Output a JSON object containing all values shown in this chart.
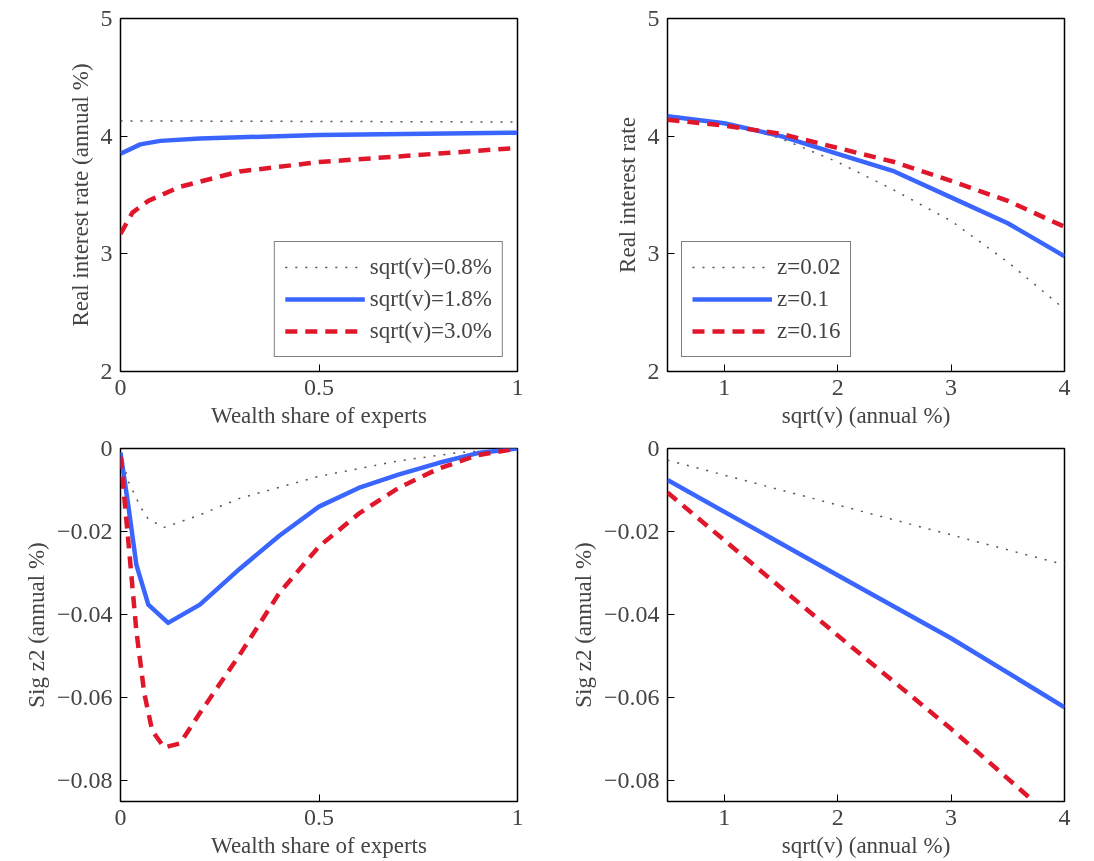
{
  "chart_data": [
    {
      "type": "line",
      "xlabel": "Wealth share of experts",
      "ylabel": "Real interest rate (annual %)",
      "xlim": [
        0,
        1
      ],
      "ylim": [
        2,
        5
      ],
      "xticks": [
        0,
        0.5,
        1
      ],
      "yticks": [
        2,
        3,
        4,
        5
      ],
      "grid": false,
      "legend": "bottom right",
      "series": [
        {
          "name": "sqrt(v)=0.8%",
          "color": "#555555",
          "line_style": "dotted",
          "x": [
            0,
            1
          ],
          "values": [
            4.13,
            4.12
          ]
        },
        {
          "name": "sqrt(v)=1.8%",
          "color": "#3a66ff",
          "line_style": "solid",
          "x": [
            0,
            0.05,
            0.1,
            0.2,
            0.5,
            1
          ],
          "values": [
            3.85,
            3.93,
            3.96,
            3.98,
            4.01,
            4.03
          ]
        },
        {
          "name": "sqrt(v)=3.0%",
          "color": "#e0162b",
          "line_style": "dashed",
          "x": [
            0,
            0.03,
            0.07,
            0.15,
            0.3,
            0.5,
            0.75,
            1
          ],
          "values": [
            3.17,
            3.35,
            3.45,
            3.57,
            3.7,
            3.78,
            3.84,
            3.9
          ]
        }
      ]
    },
    {
      "type": "line",
      "xlabel": "sqrt(v) (annual %)",
      "ylabel": "Real interest rate",
      "xlim": [
        0.5,
        4
      ],
      "ylim": [
        2,
        5
      ],
      "xticks": [
        1,
        2,
        3,
        4
      ],
      "yticks": [
        2,
        3,
        4,
        5
      ],
      "grid": false,
      "legend": "bottom left",
      "series": [
        {
          "name": "z=0.02",
          "color": "#555555",
          "line_style": "dotted",
          "x": [
            0.5,
            1,
            1.5,
            2,
            2.5,
            3,
            3.5,
            4
          ],
          "values": [
            4.18,
            4.12,
            3.98,
            3.78,
            3.54,
            3.28,
            2.93,
            2.53
          ]
        },
        {
          "name": "z=0.1",
          "color": "#3a66ff",
          "line_style": "solid",
          "x": [
            0.5,
            1,
            1.5,
            2,
            2.5,
            3,
            3.5,
            4
          ],
          "values": [
            4.17,
            4.11,
            4.0,
            3.85,
            3.7,
            3.48,
            3.26,
            2.98
          ]
        },
        {
          "name": "z=0.16",
          "color": "#e0162b",
          "line_style": "dashed",
          "x": [
            0.5,
            1,
            1.5,
            2,
            2.5,
            3,
            3.5,
            4
          ],
          "values": [
            4.14,
            4.09,
            4.02,
            3.9,
            3.78,
            3.62,
            3.45,
            3.23
          ]
        }
      ]
    },
    {
      "type": "line",
      "xlabel": "Wealth share of experts",
      "ylabel": "Sig z2 (annual %)",
      "xlim": [
        0,
        1
      ],
      "ylim": [
        -0.085,
        0
      ],
      "xticks": [
        0,
        0.5,
        1
      ],
      "yticks": [
        {
          "value": -0.08,
          "label": "−0.08"
        },
        {
          "value": -0.06,
          "label": "−0.06"
        },
        {
          "value": -0.04,
          "label": "−0.04"
        },
        {
          "value": -0.02,
          "label": "−0.02"
        },
        0
      ],
      "grid": false,
      "legend": false,
      "series": [
        {
          "color": "#555555",
          "line_style": "dotted",
          "x": [
            0,
            0.02,
            0.05,
            0.07,
            0.11,
            0.2,
            0.3,
            0.5,
            0.7,
            0.85,
            1
          ],
          "values": [
            -0.001,
            -0.008,
            -0.014,
            -0.017,
            -0.019,
            -0.016,
            -0.012,
            -0.0067,
            -0.003,
            -0.001,
            0
          ]
        },
        {
          "color": "#3a66ff",
          "line_style": "solid",
          "x": [
            0,
            0.02,
            0.04,
            0.07,
            0.12,
            0.2,
            0.3,
            0.4,
            0.5,
            0.6,
            0.7,
            0.8,
            0.9,
            1
          ],
          "values": [
            -0.001,
            -0.014,
            -0.028,
            -0.0376,
            -0.042,
            -0.0376,
            -0.029,
            -0.021,
            -0.014,
            -0.0095,
            -0.0063,
            -0.0035,
            -0.0011,
            0
          ]
        },
        {
          "color": "#e0162b",
          "line_style": "dashed",
          "x": [
            0,
            0.02,
            0.04,
            0.06,
            0.08,
            0.11,
            0.15,
            0.2,
            0.3,
            0.4,
            0.5,
            0.6,
            0.7,
            0.8,
            0.9,
            1
          ],
          "values": [
            -0.002,
            -0.0226,
            -0.044,
            -0.059,
            -0.068,
            -0.072,
            -0.071,
            -0.0637,
            -0.0497,
            -0.0348,
            -0.0236,
            -0.0157,
            -0.0095,
            -0.0049,
            -0.0016,
            0
          ]
        }
      ]
    },
    {
      "type": "line",
      "xlabel": "sqrt(v) (annual %)",
      "ylabel": "Sig z2 (annual %)",
      "xlim": [
        0.5,
        4
      ],
      "ylim": [
        -0.085,
        0
      ],
      "xticks": [
        1,
        2,
        3,
        4
      ],
      "yticks": [
        {
          "value": -0.08,
          "label": "−0.08"
        },
        {
          "value": -0.06,
          "label": "−0.06"
        },
        {
          "value": -0.04,
          "label": "−0.04"
        },
        {
          "value": -0.02,
          "label": "−0.02"
        },
        0
      ],
      "grid": false,
      "legend": false,
      "series": [
        {
          "color": "#555555",
          "line_style": "dotted",
          "x": [
            0.5,
            4
          ],
          "values": [
            -0.0028,
            -0.028
          ]
        },
        {
          "color": "#3a66ff",
          "line_style": "solid",
          "x": [
            0.5,
            2,
            3,
            4
          ],
          "values": [
            -0.0076,
            -0.0305,
            -0.0457,
            -0.0623
          ]
        },
        {
          "color": "#e0162b",
          "line_style": "dashed",
          "x": [
            0.5,
            2,
            3,
            3.73
          ],
          "values": [
            -0.0106,
            -0.045,
            -0.0675,
            -0.085
          ]
        }
      ]
    }
  ]
}
